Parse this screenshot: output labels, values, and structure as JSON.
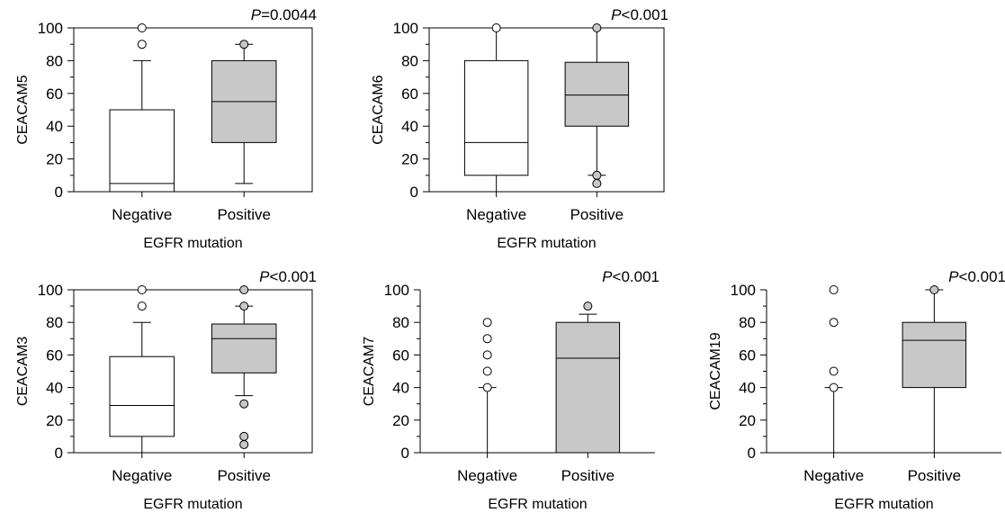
{
  "chart_data": [
    {
      "type": "box",
      "ylabel": "CEACAM5",
      "xlabel": "EGFR mutation",
      "p_value": {
        "prefix": "P",
        "rest": "=0.0044"
      },
      "categories": [
        "Negative",
        "Positive"
      ],
      "ylim": [
        0,
        100
      ],
      "yticks": [
        "0",
        "20",
        "40",
        "60",
        "80",
        "100"
      ],
      "boxes": [
        {
          "category": "Negative",
          "fill": "#ffffff",
          "whisker_low": 0,
          "q1": 0,
          "median": 5,
          "q3": 50,
          "whisker_high": 80,
          "outliers": [
            90,
            100
          ]
        },
        {
          "category": "Positive",
          "fill": "#c8c8c8",
          "whisker_low": 5,
          "q1": 30,
          "median": 55,
          "q3": 80,
          "whisker_high": 90,
          "outliers": [
            90
          ]
        }
      ]
    },
    {
      "type": "box",
      "ylabel": "CEACAM6",
      "xlabel": "EGFR mutation",
      "p_value": {
        "prefix": "P",
        "rest": "<0.001"
      },
      "categories": [
        "Negative",
        "Positive"
      ],
      "ylim": [
        0,
        100
      ],
      "yticks": [
        "0",
        "20",
        "40",
        "60",
        "80",
        "100"
      ],
      "boxes": [
        {
          "category": "Negative",
          "fill": "#ffffff",
          "whisker_low": 0,
          "q1": 10,
          "median": 30,
          "q3": 80,
          "whisker_high": 100,
          "outliers": [
            100
          ]
        },
        {
          "category": "Positive",
          "fill": "#c8c8c8",
          "whisker_low": 10,
          "q1": 40,
          "median": 59,
          "q3": 79,
          "whisker_high": 100,
          "outliers": [
            100,
            10,
            5
          ]
        }
      ]
    },
    {
      "type": "box",
      "ylabel": "CEACAM3",
      "xlabel": "EGFR mutation",
      "p_value": {
        "prefix": "P",
        "rest": "<0.001"
      },
      "categories": [
        "Negative",
        "Positive"
      ],
      "ylim": [
        0,
        100
      ],
      "yticks": [
        "0",
        "20",
        "40",
        "60",
        "80",
        "100"
      ],
      "boxes": [
        {
          "category": "Negative",
          "fill": "#ffffff",
          "whisker_low": 0,
          "q1": 10,
          "median": 29,
          "q3": 59,
          "whisker_high": 80,
          "outliers": [
            90,
            100
          ]
        },
        {
          "category": "Positive",
          "fill": "#c8c8c8",
          "whisker_low": 35,
          "q1": 49,
          "median": 70,
          "q3": 79,
          "whisker_high": 90,
          "outliers": [
            100,
            90,
            30,
            10,
            5
          ]
        }
      ]
    },
    {
      "type": "box",
      "ylabel": "CEACAM7",
      "xlabel": "EGFR mutation",
      "p_value": {
        "prefix": "P",
        "rest": "<0.001"
      },
      "categories": [
        "Negative",
        "Positive"
      ],
      "ylim": [
        0,
        100
      ],
      "yticks": [
        "0",
        "20",
        "40",
        "60",
        "80",
        "100"
      ],
      "boxes": [
        {
          "category": "Negative",
          "fill": "#ffffff",
          "whisker_low": 0,
          "q1": 0,
          "median": 0,
          "q3": 0,
          "whisker_high": 40,
          "outliers": [
            40,
            50,
            60,
            70,
            80
          ]
        },
        {
          "category": "Positive",
          "fill": "#c8c8c8",
          "whisker_low": 0,
          "q1": 0,
          "median": 58,
          "q3": 80,
          "whisker_high": 85,
          "outliers": [
            90
          ]
        }
      ]
    },
    {
      "type": "box",
      "ylabel": "CEACAM19",
      "xlabel": "EGFR mutation",
      "p_value": {
        "prefix": "P",
        "rest": "<0.001"
      },
      "categories": [
        "Negative",
        "Positive"
      ],
      "ylim": [
        0,
        100
      ],
      "yticks": [
        "0",
        "20",
        "40",
        "60",
        "80",
        "100"
      ],
      "boxes": [
        {
          "category": "Negative",
          "fill": "#ffffff",
          "whisker_low": 0,
          "q1": 0,
          "median": 0,
          "q3": 0,
          "whisker_high": 40,
          "outliers": [
            40,
            50,
            80,
            100
          ]
        },
        {
          "category": "Positive",
          "fill": "#c8c8c8",
          "whisker_low": 0,
          "q1": 40,
          "median": 69,
          "q3": 80,
          "whisker_high": 100,
          "outliers": [
            100
          ]
        }
      ]
    }
  ]
}
